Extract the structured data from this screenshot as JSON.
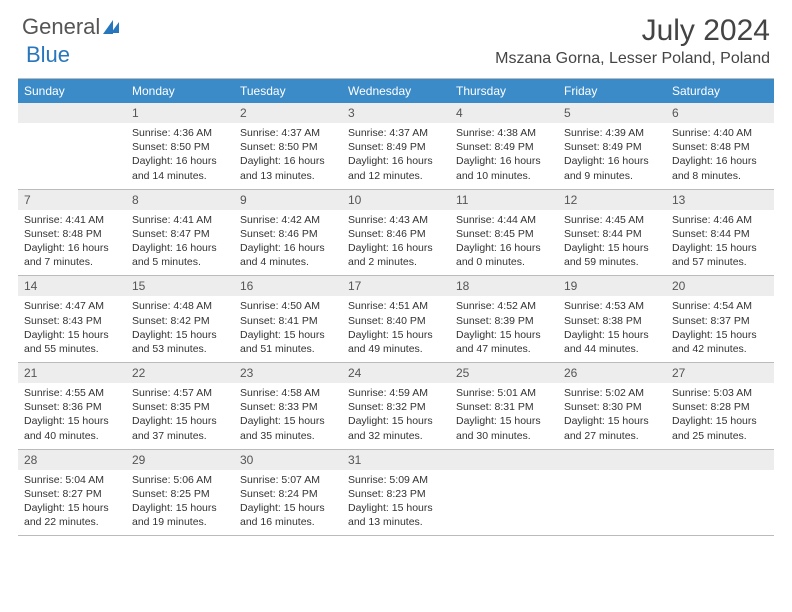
{
  "logo": {
    "part1": "General",
    "part2": "Blue"
  },
  "title": "July 2024",
  "location": "Mszana Gorna, Lesser Poland, Poland",
  "colors": {
    "header_bg": "#3b8bc8",
    "daynum_bg": "#ededed",
    "border": "#bbbbbb"
  },
  "day_names": [
    "Sunday",
    "Monday",
    "Tuesday",
    "Wednesday",
    "Thursday",
    "Friday",
    "Saturday"
  ],
  "weeks": [
    {
      "nums": [
        "",
        "1",
        "2",
        "3",
        "4",
        "5",
        "6"
      ],
      "cells": [
        {
          "sunrise": "",
          "sunset": "",
          "daylight": ""
        },
        {
          "sunrise": "Sunrise: 4:36 AM",
          "sunset": "Sunset: 8:50 PM",
          "daylight": "Daylight: 16 hours and 14 minutes."
        },
        {
          "sunrise": "Sunrise: 4:37 AM",
          "sunset": "Sunset: 8:50 PM",
          "daylight": "Daylight: 16 hours and 13 minutes."
        },
        {
          "sunrise": "Sunrise: 4:37 AM",
          "sunset": "Sunset: 8:49 PM",
          "daylight": "Daylight: 16 hours and 12 minutes."
        },
        {
          "sunrise": "Sunrise: 4:38 AM",
          "sunset": "Sunset: 8:49 PM",
          "daylight": "Daylight: 16 hours and 10 minutes."
        },
        {
          "sunrise": "Sunrise: 4:39 AM",
          "sunset": "Sunset: 8:49 PM",
          "daylight": "Daylight: 16 hours and 9 minutes."
        },
        {
          "sunrise": "Sunrise: 4:40 AM",
          "sunset": "Sunset: 8:48 PM",
          "daylight": "Daylight: 16 hours and 8 minutes."
        }
      ]
    },
    {
      "nums": [
        "7",
        "8",
        "9",
        "10",
        "11",
        "12",
        "13"
      ],
      "cells": [
        {
          "sunrise": "Sunrise: 4:41 AM",
          "sunset": "Sunset: 8:48 PM",
          "daylight": "Daylight: 16 hours and 7 minutes."
        },
        {
          "sunrise": "Sunrise: 4:41 AM",
          "sunset": "Sunset: 8:47 PM",
          "daylight": "Daylight: 16 hours and 5 minutes."
        },
        {
          "sunrise": "Sunrise: 4:42 AM",
          "sunset": "Sunset: 8:46 PM",
          "daylight": "Daylight: 16 hours and 4 minutes."
        },
        {
          "sunrise": "Sunrise: 4:43 AM",
          "sunset": "Sunset: 8:46 PM",
          "daylight": "Daylight: 16 hours and 2 minutes."
        },
        {
          "sunrise": "Sunrise: 4:44 AM",
          "sunset": "Sunset: 8:45 PM",
          "daylight": "Daylight: 16 hours and 0 minutes."
        },
        {
          "sunrise": "Sunrise: 4:45 AM",
          "sunset": "Sunset: 8:44 PM",
          "daylight": "Daylight: 15 hours and 59 minutes."
        },
        {
          "sunrise": "Sunrise: 4:46 AM",
          "sunset": "Sunset: 8:44 PM",
          "daylight": "Daylight: 15 hours and 57 minutes."
        }
      ]
    },
    {
      "nums": [
        "14",
        "15",
        "16",
        "17",
        "18",
        "19",
        "20"
      ],
      "cells": [
        {
          "sunrise": "Sunrise: 4:47 AM",
          "sunset": "Sunset: 8:43 PM",
          "daylight": "Daylight: 15 hours and 55 minutes."
        },
        {
          "sunrise": "Sunrise: 4:48 AM",
          "sunset": "Sunset: 8:42 PM",
          "daylight": "Daylight: 15 hours and 53 minutes."
        },
        {
          "sunrise": "Sunrise: 4:50 AM",
          "sunset": "Sunset: 8:41 PM",
          "daylight": "Daylight: 15 hours and 51 minutes."
        },
        {
          "sunrise": "Sunrise: 4:51 AM",
          "sunset": "Sunset: 8:40 PM",
          "daylight": "Daylight: 15 hours and 49 minutes."
        },
        {
          "sunrise": "Sunrise: 4:52 AM",
          "sunset": "Sunset: 8:39 PM",
          "daylight": "Daylight: 15 hours and 47 minutes."
        },
        {
          "sunrise": "Sunrise: 4:53 AM",
          "sunset": "Sunset: 8:38 PM",
          "daylight": "Daylight: 15 hours and 44 minutes."
        },
        {
          "sunrise": "Sunrise: 4:54 AM",
          "sunset": "Sunset: 8:37 PM",
          "daylight": "Daylight: 15 hours and 42 minutes."
        }
      ]
    },
    {
      "nums": [
        "21",
        "22",
        "23",
        "24",
        "25",
        "26",
        "27"
      ],
      "cells": [
        {
          "sunrise": "Sunrise: 4:55 AM",
          "sunset": "Sunset: 8:36 PM",
          "daylight": "Daylight: 15 hours and 40 minutes."
        },
        {
          "sunrise": "Sunrise: 4:57 AM",
          "sunset": "Sunset: 8:35 PM",
          "daylight": "Daylight: 15 hours and 37 minutes."
        },
        {
          "sunrise": "Sunrise: 4:58 AM",
          "sunset": "Sunset: 8:33 PM",
          "daylight": "Daylight: 15 hours and 35 minutes."
        },
        {
          "sunrise": "Sunrise: 4:59 AM",
          "sunset": "Sunset: 8:32 PM",
          "daylight": "Daylight: 15 hours and 32 minutes."
        },
        {
          "sunrise": "Sunrise: 5:01 AM",
          "sunset": "Sunset: 8:31 PM",
          "daylight": "Daylight: 15 hours and 30 minutes."
        },
        {
          "sunrise": "Sunrise: 5:02 AM",
          "sunset": "Sunset: 8:30 PM",
          "daylight": "Daylight: 15 hours and 27 minutes."
        },
        {
          "sunrise": "Sunrise: 5:03 AM",
          "sunset": "Sunset: 8:28 PM",
          "daylight": "Daylight: 15 hours and 25 minutes."
        }
      ]
    },
    {
      "nums": [
        "28",
        "29",
        "30",
        "31",
        "",
        "",
        ""
      ],
      "cells": [
        {
          "sunrise": "Sunrise: 5:04 AM",
          "sunset": "Sunset: 8:27 PM",
          "daylight": "Daylight: 15 hours and 22 minutes."
        },
        {
          "sunrise": "Sunrise: 5:06 AM",
          "sunset": "Sunset: 8:25 PM",
          "daylight": "Daylight: 15 hours and 19 minutes."
        },
        {
          "sunrise": "Sunrise: 5:07 AM",
          "sunset": "Sunset: 8:24 PM",
          "daylight": "Daylight: 15 hours and 16 minutes."
        },
        {
          "sunrise": "Sunrise: 5:09 AM",
          "sunset": "Sunset: 8:23 PM",
          "daylight": "Daylight: 15 hours and 13 minutes."
        },
        {
          "sunrise": "",
          "sunset": "",
          "daylight": ""
        },
        {
          "sunrise": "",
          "sunset": "",
          "daylight": ""
        },
        {
          "sunrise": "",
          "sunset": "",
          "daylight": ""
        }
      ]
    }
  ]
}
